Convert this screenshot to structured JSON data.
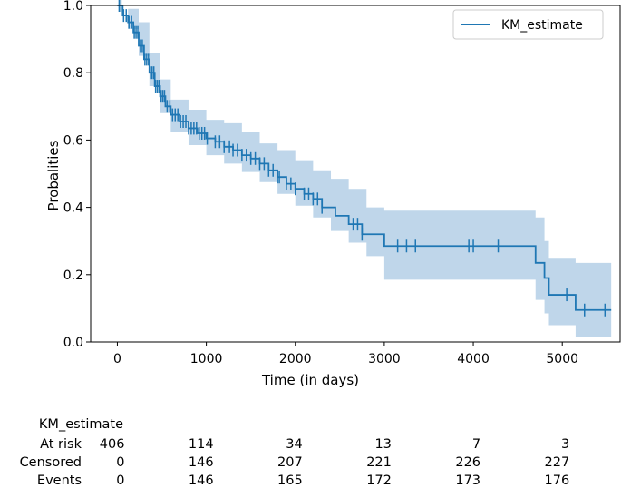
{
  "chart_data": {
    "type": "line",
    "subtype": "kaplan-meier",
    "title": "",
    "xlabel": "Time (in days)",
    "ylabel": "Probalities",
    "xlim": [
      -300,
      5650
    ],
    "ylim": [
      0.0,
      1.0
    ],
    "xticks": [
      0,
      1000,
      2000,
      3000,
      4000,
      5000
    ],
    "yticks": [
      0.0,
      0.2,
      0.4,
      0.6,
      0.8,
      1.0
    ],
    "xtick_labels": [
      "0",
      "1000",
      "2000",
      "3000",
      "4000",
      "5000"
    ],
    "ytick_labels": [
      "0.0",
      "0.2",
      "0.4",
      "0.6",
      "0.8",
      "1.0"
    ],
    "legend": {
      "position": "top-right",
      "entries": [
        "KM_estimate"
      ]
    },
    "colors": {
      "line": "#1f77b4",
      "band": "#a9c8e3"
    },
    "series": [
      {
        "name": "KM_estimate",
        "step": [
          [
            0,
            1.0
          ],
          [
            60,
            0.97
          ],
          [
            120,
            0.95
          ],
          [
            180,
            0.92
          ],
          [
            240,
            0.88
          ],
          [
            300,
            0.84
          ],
          [
            360,
            0.8
          ],
          [
            420,
            0.76
          ],
          [
            480,
            0.73
          ],
          [
            540,
            0.7
          ],
          [
            600,
            0.675
          ],
          [
            700,
            0.655
          ],
          [
            800,
            0.635
          ],
          [
            900,
            0.62
          ],
          [
            1000,
            0.605
          ],
          [
            1100,
            0.595
          ],
          [
            1200,
            0.58
          ],
          [
            1300,
            0.57
          ],
          [
            1400,
            0.555
          ],
          [
            1500,
            0.545
          ],
          [
            1600,
            0.53
          ],
          [
            1700,
            0.51
          ],
          [
            1800,
            0.49
          ],
          [
            1900,
            0.47
          ],
          [
            2000,
            0.455
          ],
          [
            2100,
            0.44
          ],
          [
            2200,
            0.425
          ],
          [
            2300,
            0.4
          ],
          [
            2450,
            0.375
          ],
          [
            2600,
            0.35
          ],
          [
            2750,
            0.32
          ],
          [
            3000,
            0.285
          ],
          [
            4700,
            0.235
          ],
          [
            4800,
            0.19
          ],
          [
            4850,
            0.14
          ],
          [
            5150,
            0.095
          ],
          [
            5550,
            0.095
          ]
        ],
        "ci_lower": [
          [
            0,
            1.0
          ],
          [
            120,
            0.93
          ],
          [
            240,
            0.85
          ],
          [
            360,
            0.76
          ],
          [
            480,
            0.68
          ],
          [
            600,
            0.625
          ],
          [
            800,
            0.585
          ],
          [
            1000,
            0.555
          ],
          [
            1200,
            0.53
          ],
          [
            1400,
            0.505
          ],
          [
            1600,
            0.475
          ],
          [
            1800,
            0.44
          ],
          [
            2000,
            0.405
          ],
          [
            2200,
            0.37
          ],
          [
            2400,
            0.33
          ],
          [
            2600,
            0.295
          ],
          [
            2800,
            0.255
          ],
          [
            3000,
            0.185
          ],
          [
            4700,
            0.125
          ],
          [
            4800,
            0.085
          ],
          [
            4850,
            0.05
          ],
          [
            5150,
            0.015
          ],
          [
            5550,
            0.015
          ]
        ],
        "ci_upper": [
          [
            0,
            1.0
          ],
          [
            120,
            0.99
          ],
          [
            240,
            0.95
          ],
          [
            360,
            0.86
          ],
          [
            480,
            0.78
          ],
          [
            600,
            0.72
          ],
          [
            800,
            0.69
          ],
          [
            1000,
            0.66
          ],
          [
            1200,
            0.65
          ],
          [
            1400,
            0.625
          ],
          [
            1600,
            0.59
          ],
          [
            1800,
            0.57
          ],
          [
            2000,
            0.54
          ],
          [
            2200,
            0.51
          ],
          [
            2400,
            0.485
          ],
          [
            2600,
            0.455
          ],
          [
            2800,
            0.4
          ],
          [
            3000,
            0.39
          ],
          [
            4700,
            0.37
          ],
          [
            4800,
            0.3
          ],
          [
            4850,
            0.25
          ],
          [
            5150,
            0.235
          ],
          [
            5550,
            0.235
          ]
        ],
        "censored_times": [
          20,
          40,
          70,
          100,
          130,
          160,
          190,
          210,
          230,
          260,
          280,
          310,
          330,
          350,
          370,
          390,
          410,
          430,
          450,
          470,
          490,
          510,
          530,
          560,
          590,
          620,
          650,
          680,
          710,
          740,
          770,
          800,
          830,
          860,
          890,
          920,
          950,
          980,
          1010,
          1100,
          1150,
          1200,
          1260,
          1300,
          1350,
          1400,
          1450,
          1500,
          1550,
          1600,
          1650,
          1700,
          1750,
          1800,
          1820,
          1900,
          1950,
          2000,
          2100,
          2150,
          2200,
          2250,
          2300,
          2650,
          2700,
          2750,
          3150,
          3250,
          3350,
          3950,
          4000,
          4280,
          5050,
          5250,
          5480
        ]
      }
    ],
    "risk_table": {
      "title": "KM_estimate",
      "time_points": [
        0,
        1000,
        2000,
        3000,
        4000,
        5000
      ],
      "rows": [
        {
          "label": "At risk",
          "values": [
            "406",
            "114",
            "34",
            "13",
            "7",
            "3"
          ]
        },
        {
          "label": "Censored",
          "values": [
            "0",
            "146",
            "207",
            "221",
            "226",
            "227"
          ]
        },
        {
          "label": "Events",
          "values": [
            "0",
            "146",
            "165",
            "172",
            "173",
            "176"
          ]
        }
      ]
    }
  }
}
